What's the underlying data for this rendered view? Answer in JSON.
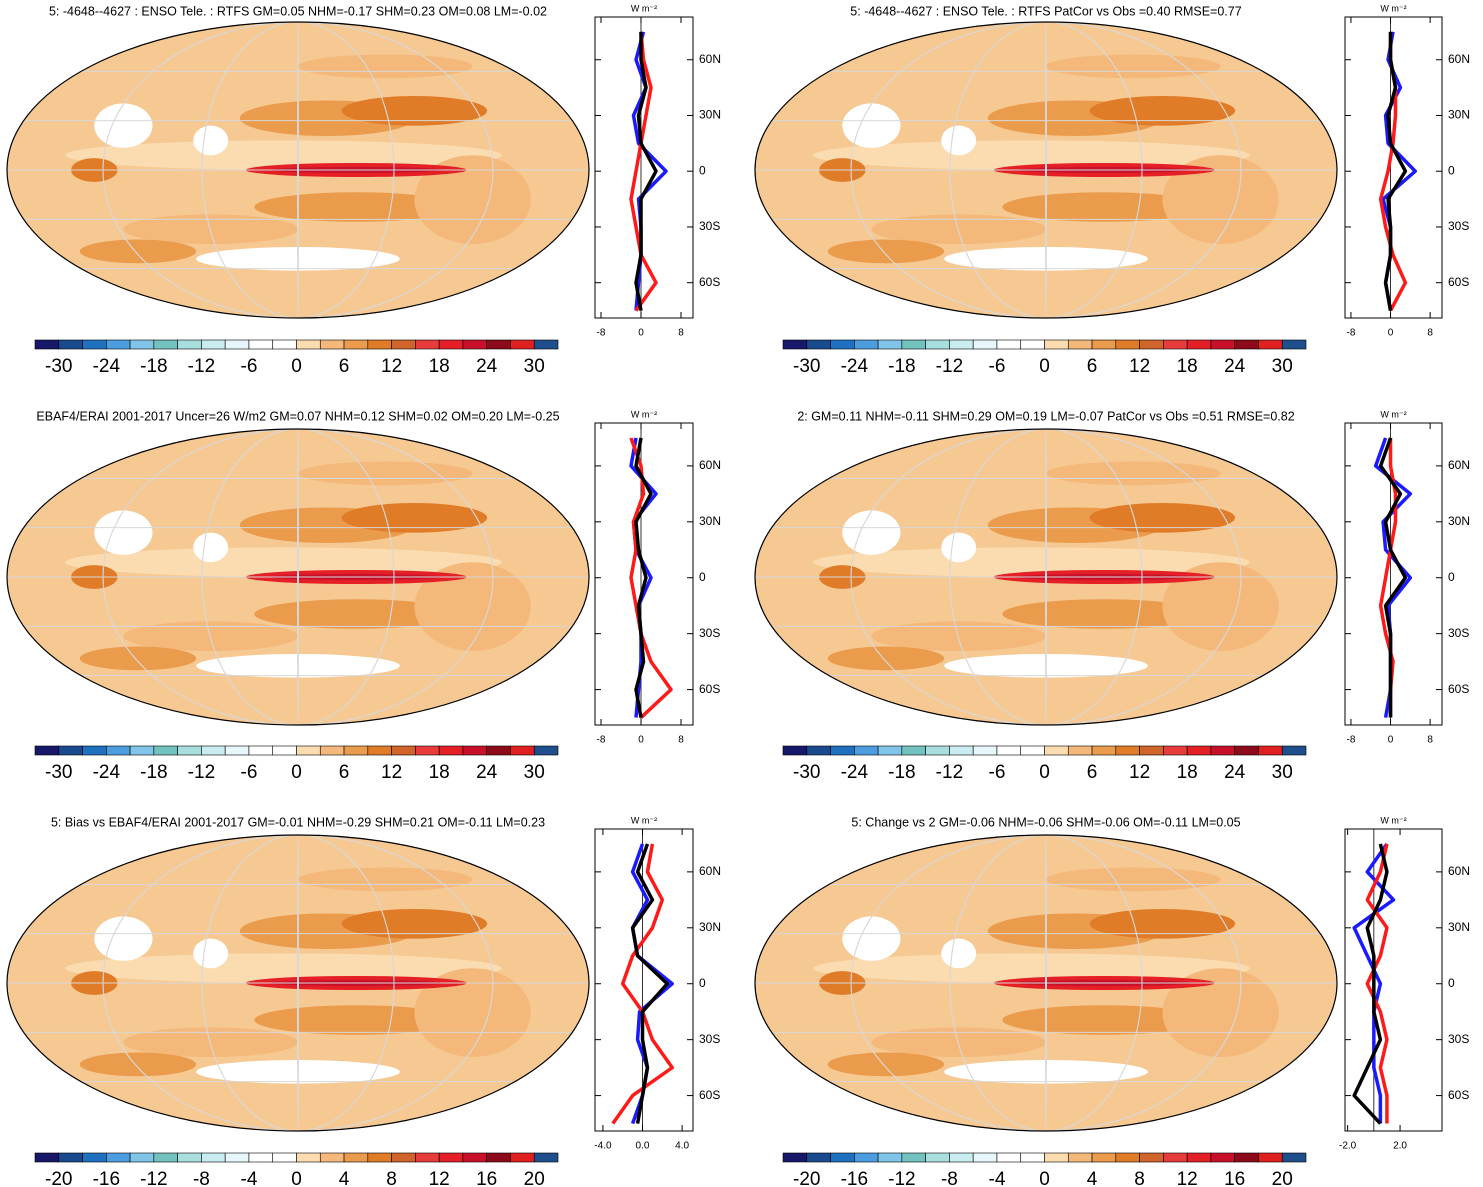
{
  "chart_data": [
    {
      "type": "line",
      "title": "5: -4648--4627 : ENSO Tele. : RTFS GM=0.05 NHM=-0.17 SHM=0.23 OM=0.08 LM=-0.02",
      "units": "W m⁻²",
      "y": [
        -75,
        -60,
        -45,
        -30,
        -15,
        0,
        15,
        30,
        45,
        60,
        75
      ],
      "ylim": [
        -79,
        83
      ],
      "yticks": [
        {
          "value": -60,
          "label": "60S"
        },
        {
          "value": -30,
          "label": "30S"
        },
        0,
        {
          "value": 30,
          "label": "30N"
        },
        {
          "value": 60,
          "label": "60N"
        }
      ],
      "xlim": [
        -9.2,
        10.4
      ],
      "xticks": [
        -8,
        0,
        8
      ],
      "series": [
        {
          "color": "#1a1aff",
          "values": [
            -1,
            -0.5,
            0,
            0,
            -0.5,
            5,
            -0.5,
            -1.5,
            1,
            -1,
            0.5
          ]
        },
        {
          "color": "#ff1a1a",
          "values": [
            -1,
            3,
            0,
            -1,
            -2,
            -1,
            0,
            1,
            2,
            0.5,
            0
          ]
        },
        {
          "color": "#000000",
          "values": [
            0,
            -1,
            0,
            0,
            0,
            3,
            0,
            -0.5,
            1,
            0,
            0
          ]
        }
      ],
      "colorbar": {
        "clim": [
          -33,
          33
        ],
        "ticks": [
          -30,
          -24,
          -18,
          -12,
          -6,
          0,
          6,
          12,
          18,
          24,
          30
        ]
      }
    },
    {
      "type": "line",
      "title": "5: -4648--4627 : ENSO Tele. : RTFS PatCor vs Obs =0.40 RMSE=0.77",
      "units": "W m⁻²",
      "y": [
        -75,
        -60,
        -45,
        -30,
        -15,
        0,
        15,
        30,
        45,
        60,
        75
      ],
      "ylim": [
        -79,
        83
      ],
      "yticks": [
        {
          "value": -60,
          "label": "60S"
        },
        {
          "value": -30,
          "label": "30S"
        },
        0,
        {
          "value": 30,
          "label": "30N"
        },
        {
          "value": 60,
          "label": "60N"
        }
      ],
      "xlim": [
        -9.2,
        10.4
      ],
      "xticks": [
        -8,
        0,
        8
      ],
      "series": [
        {
          "color": "#1a1aff",
          "values": [
            0,
            -1,
            0,
            0,
            -1.5,
            5,
            -0.5,
            -1,
            2,
            -0.5,
            0.5
          ]
        },
        {
          "color": "#ff1a1a",
          "values": [
            0,
            3,
            0.5,
            -1,
            -2,
            -0.5,
            0.5,
            1,
            1,
            0,
            0
          ]
        },
        {
          "color": "#000000",
          "values": [
            0,
            -1,
            0,
            0,
            -0.5,
            3,
            0,
            -0.5,
            1,
            0,
            0
          ]
        }
      ],
      "colorbar": {
        "clim": [
          -33,
          33
        ],
        "ticks": [
          -30,
          -24,
          -18,
          -12,
          -6,
          0,
          6,
          12,
          18,
          24,
          30
        ]
      }
    },
    {
      "type": "line",
      "title": "EBAF4/ERAI 2001-2017 Uncer=26 W/m2 GM=0.07 NHM=0.12 SHM=0.02 OM=0.20 LM=-0.25",
      "units": "W m⁻²",
      "y": [
        -75,
        -60,
        -45,
        -30,
        -15,
        0,
        15,
        30,
        45,
        60,
        75
      ],
      "ylim": [
        -79,
        83
      ],
      "yticks": [
        {
          "value": -60,
          "label": "60S"
        },
        {
          "value": -30,
          "label": "30S"
        },
        0,
        {
          "value": 30,
          "label": "30N"
        },
        {
          "value": 60,
          "label": "60N"
        }
      ],
      "xlim": [
        -9.2,
        10.4
      ],
      "xticks": [
        -8,
        0,
        8
      ],
      "series": [
        {
          "color": "#1a1aff",
          "values": [
            -1,
            -0.5,
            0,
            0,
            -0.5,
            2,
            -1,
            -1.5,
            3,
            -2,
            -1
          ]
        },
        {
          "color": "#ff1a1a",
          "values": [
            0,
            6,
            2,
            0,
            -1,
            -2,
            -1,
            -1.5,
            0.5,
            0,
            -2
          ]
        },
        {
          "color": "#000000",
          "values": [
            0,
            -1,
            0.5,
            0,
            -0.5,
            1,
            -0.5,
            -1,
            2,
            -1,
            0
          ]
        }
      ],
      "colorbar": {
        "clim": [
          -33,
          33
        ],
        "ticks": [
          -30,
          -24,
          -18,
          -12,
          -6,
          0,
          6,
          12,
          18,
          24,
          30
        ]
      }
    },
    {
      "type": "line",
      "title": "2: GM=0.11 NHM=-0.11 SHM=0.29 OM=0.19 LM=-0.07 PatCor vs Obs =0.51 RMSE=0.82",
      "units": "W m⁻²",
      "y": [
        -75,
        -60,
        -45,
        -30,
        -15,
        0,
        15,
        30,
        45,
        60,
        75
      ],
      "ylim": [
        -79,
        83
      ],
      "yticks": [
        {
          "value": -60,
          "label": "60S"
        },
        {
          "value": -30,
          "label": "30S"
        },
        0,
        {
          "value": 30,
          "label": "30N"
        },
        {
          "value": 60,
          "label": "60N"
        }
      ],
      "xlim": [
        -9.2,
        10.4
      ],
      "xticks": [
        -8,
        0,
        8
      ],
      "series": [
        {
          "color": "#1a1aff",
          "values": [
            -1,
            0,
            0,
            0,
            -0.5,
            4,
            -1,
            -1.5,
            4,
            -3,
            -1
          ]
        },
        {
          "color": "#ff1a1a",
          "values": [
            0,
            0,
            0.5,
            -1,
            -2,
            -1,
            0,
            1,
            1,
            0,
            0
          ]
        },
        {
          "color": "#000000",
          "values": [
            0,
            0,
            0,
            0,
            -1,
            3,
            0,
            -1,
            2,
            -2,
            0
          ]
        }
      ],
      "colorbar": {
        "clim": [
          -33,
          33
        ],
        "ticks": [
          -30,
          -24,
          -18,
          -12,
          -6,
          0,
          6,
          12,
          18,
          24,
          30
        ]
      }
    },
    {
      "type": "line",
      "title": "5: Bias vs EBAF4/ERAI 2001-2017 GM=-0.01 NHM=-0.29 SHM=0.21 OM=-0.11 LM=0.23",
      "units": "W m⁻²",
      "y": [
        -75,
        -60,
        -45,
        -30,
        -15,
        0,
        15,
        30,
        45,
        60,
        75
      ],
      "ylim": [
        -79,
        83
      ],
      "yticks": [
        {
          "value": -60,
          "label": "60S"
        },
        {
          "value": -30,
          "label": "30S"
        },
        0,
        {
          "value": 30,
          "label": "30N"
        },
        {
          "value": 60,
          "label": "60N"
        }
      ],
      "xlim": [
        -4.8,
        5.1
      ],
      "xticks": [
        {
          "value": -4,
          "label": "-4.0"
        },
        {
          "value": 0,
          "label": "0.0"
        },
        {
          "value": 4,
          "label": "4.0"
        }
      ],
      "series": [
        {
          "color": "#1a1aff",
          "values": [
            -1,
            0,
            0.5,
            -0.5,
            -0.3,
            3,
            -0.5,
            -1,
            0.5,
            -1,
            0
          ]
        },
        {
          "color": "#ff1a1a",
          "values": [
            -3,
            -1,
            3,
            1,
            0,
            -2,
            -1,
            1,
            2,
            0.5,
            1
          ]
        },
        {
          "color": "#000000",
          "values": [
            -0.5,
            0,
            0.5,
            0,
            0,
            2.5,
            -0.5,
            -1,
            1,
            -0.5,
            0.5
          ]
        }
      ],
      "colorbar": {
        "clim": [
          -22,
          22
        ],
        "ticks": [
          -20,
          -16,
          -12,
          -8,
          -4,
          0,
          4,
          8,
          12,
          16,
          20
        ]
      }
    },
    {
      "type": "line",
      "title": "5: Change vs 2 GM=-0.06 NHM=-0.06 SHM=-0.06 OM=-0.11 LM=0.05",
      "units": "W m⁻²",
      "y": [
        -75,
        -60,
        -45,
        -30,
        -15,
        0,
        15,
        30,
        45,
        60,
        75
      ],
      "ylim": [
        -79,
        83
      ],
      "yticks": [
        {
          "value": -60,
          "label": "60S"
        },
        {
          "value": -30,
          "label": "30S"
        },
        0,
        {
          "value": 30,
          "label": "30N"
        },
        {
          "value": 60,
          "label": "60N"
        }
      ],
      "xlim": [
        -2.2,
        5.2
      ],
      "xticks": [
        {
          "value": -2,
          "label": "-2.0"
        },
        {
          "value": 2,
          "label": "2.0"
        }
      ],
      "series": [
        {
          "color": "#1a1aff",
          "values": [
            0.5,
            0.5,
            0,
            0,
            0,
            0.5,
            -0.5,
            -1.5,
            1.5,
            -0.5,
            1
          ]
        },
        {
          "color": "#ff1a1a",
          "values": [
            1,
            1,
            0.5,
            1,
            0.5,
            -0.5,
            0.5,
            1,
            -0.5,
            0.5,
            1
          ]
        },
        {
          "color": "#000000",
          "values": [
            0.5,
            -1.5,
            -0.5,
            0.5,
            0,
            0,
            0,
            -0.5,
            0.5,
            1,
            0.5
          ]
        }
      ],
      "colorbar": {
        "clim": [
          -22,
          22
        ],
        "ticks": [
          -20,
          -16,
          -12,
          -8,
          -4,
          0,
          4,
          8,
          12,
          16,
          20
        ]
      }
    }
  ]
}
